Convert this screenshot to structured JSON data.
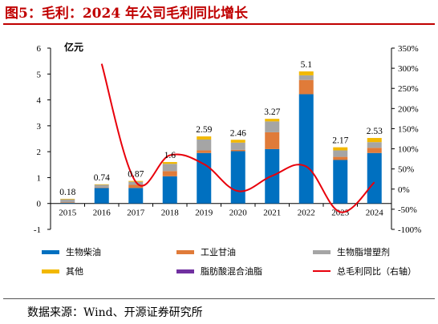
{
  "figure_title": "图5：毛利：2024 年公司毛利同比增长",
  "source": "数据来源：Wind、开源证券研究所",
  "chart_data": {
    "type": "bar",
    "stacked": true,
    "categories": [
      "2015",
      "2016",
      "2017",
      "2018",
      "2019",
      "2020",
      "2021",
      "2022",
      "2023",
      "2024"
    ],
    "left_axis_unit": "亿元",
    "left_axis": {
      "min": -1,
      "max": 6,
      "ticks": [
        "-1",
        "0",
        "1",
        "2",
        "3",
        "4",
        "5",
        "6"
      ]
    },
    "right_axis": {
      "min": -100,
      "max": 350,
      "ticks": [
        "-100%",
        "-50%",
        "0%",
        "50%",
        "100%",
        "150%",
        "200%",
        "250%",
        "300%",
        "350%"
      ]
    },
    "totals": [
      "0.18",
      "0.74",
      "0.87",
      "1.6",
      "2.59",
      "2.46",
      "3.27",
      "5.1",
      "2.17",
      "2.53"
    ],
    "series": [
      {
        "name": "生物柴油",
        "color": "#0070c0",
        "values": [
          0.02,
          0.6,
          0.6,
          1.05,
          1.95,
          2.02,
          2.1,
          4.22,
          1.68,
          1.95
        ]
      },
      {
        "name": "工业甘油",
        "color": "#e07b39",
        "values": [
          0.02,
          0.02,
          0.12,
          0.2,
          0.1,
          0.05,
          0.65,
          0.55,
          0.12,
          0.2
        ]
      },
      {
        "name": "生物脂增塑剂",
        "color": "#a5a5a5",
        "values": [
          0.12,
          0.1,
          0.12,
          0.28,
          0.42,
          0.28,
          0.42,
          0.18,
          0.25,
          0.22
        ]
      },
      {
        "name": "其他",
        "color": "#f2b800",
        "values": [
          0.02,
          0.02,
          0.03,
          0.07,
          0.12,
          0.11,
          0.1,
          0.15,
          0.12,
          0.16
        ]
      },
      {
        "name": "脂肪酸混合油脂",
        "color": "#7030a0",
        "values": [
          0,
          0,
          0,
          0,
          0,
          0,
          0,
          0,
          0,
          0
        ]
      }
    ],
    "line": {
      "name": "总毛利同比（右轴）",
      "color": "#e8000b",
      "values": [
        null,
        311,
        18,
        84,
        62,
        -5,
        33,
        56,
        -57,
        17
      ]
    },
    "legend": [
      "生物柴油",
      "工业甘油",
      "生物脂增塑剂",
      "其他",
      "脂肪酸混合油脂",
      "总毛利同比（右轴）"
    ],
    "grid": false,
    "legend_position": "bottom"
  }
}
